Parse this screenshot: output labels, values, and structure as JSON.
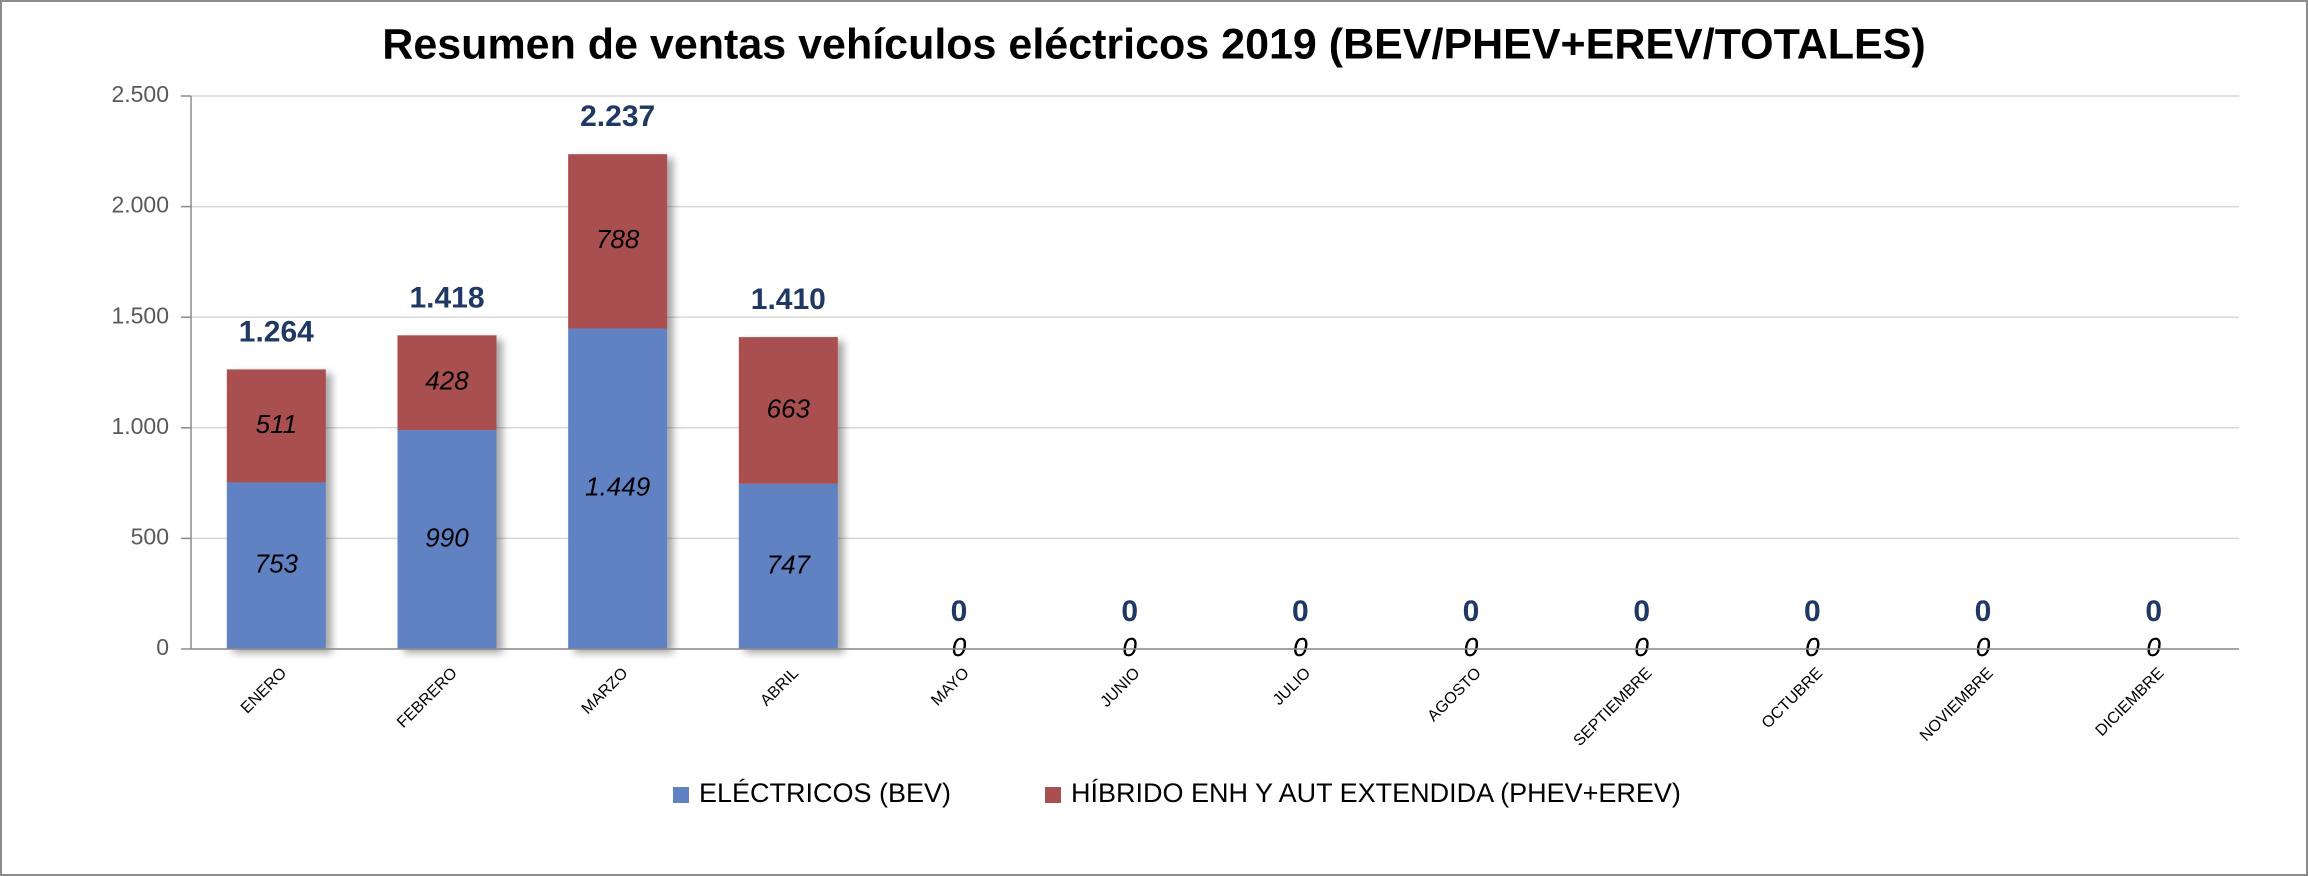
{
  "chart_data": {
    "type": "stacked_bar",
    "title": "Resumen de ventas vehículos eléctricos 2019 (BEV/PHEV+EREV/TOTALES)",
    "categories": [
      "ENERO",
      "FEBRERO",
      "MARZO",
      "ABRIL",
      "MAYO",
      "JUNIO",
      "JULIO",
      "AGOSTO",
      "SEPTIEMBRE",
      "OCTUBRE",
      "NOVIEMBRE",
      "DICIEMBRE"
    ],
    "series": [
      {
        "name": "ELÉCTRICOS (BEV)",
        "color": "#6082c2",
        "values": [
          753,
          990,
          1449,
          747,
          0,
          0,
          0,
          0,
          0,
          0,
          0,
          0
        ],
        "value_labels": [
          "753",
          "990",
          "1.449",
          "747",
          "0",
          "0",
          "0",
          "0",
          "0",
          "0",
          "0",
          "0"
        ]
      },
      {
        "name": "HÍBRIDO ENH Y AUT EXTENDIDA (PHEV+EREV)",
        "color": "#a94f4f",
        "values": [
          511,
          428,
          788,
          663,
          0,
          0,
          0,
          0,
          0,
          0,
          0,
          0
        ],
        "value_labels": [
          "511",
          "428",
          "788",
          "663",
          "0",
          "0",
          "0",
          "0",
          "0",
          "0",
          "0",
          "0"
        ]
      }
    ],
    "totals": {
      "values": [
        1264,
        1418,
        2237,
        1410,
        0,
        0,
        0,
        0,
        0,
        0,
        0,
        0
      ],
      "value_labels": [
        "1.264",
        "1.418",
        "2.237",
        "1.410",
        "0",
        "0",
        "0",
        "0",
        "0",
        "0",
        "0",
        "0"
      ]
    },
    "ylim": [
      0,
      2500
    ],
    "yticks": [
      0,
      500,
      {
        "value": 1000,
        "label": "1.000"
      },
      {
        "value": 1500,
        "label": "1.500"
      },
      {
        "value": 2000,
        "label": "2.000"
      },
      {
        "value": 2500,
        "label": "2.500"
      }
    ],
    "grid": true,
    "legend": "bottom"
  }
}
